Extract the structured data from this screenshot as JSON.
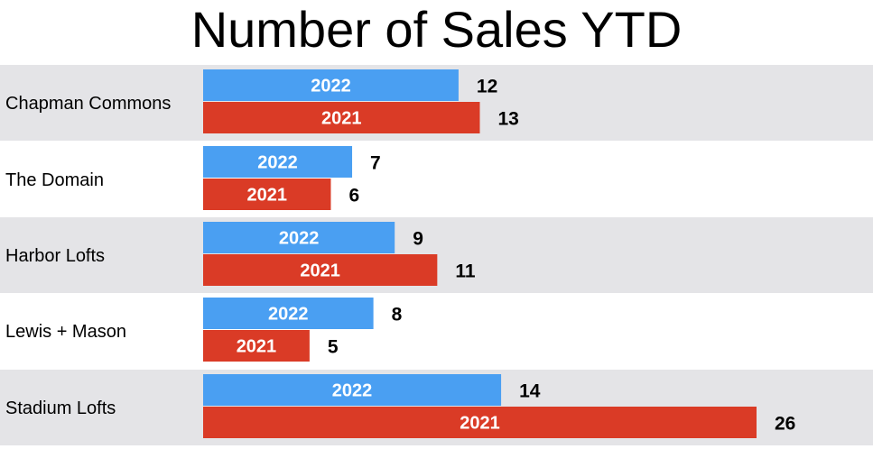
{
  "chart_data": {
    "type": "bar",
    "orientation": "horizontal",
    "title": "Number of Sales YTD",
    "categories": [
      "Chapman Commons",
      "The Domain",
      "Harbor Lofts",
      "Lewis + Mason",
      "Stadium Lofts"
    ],
    "series": [
      {
        "name": "2022",
        "values": [
          12,
          7,
          9,
          8,
          14
        ]
      },
      {
        "name": "2021",
        "values": [
          13,
          6,
          11,
          5,
          26
        ]
      }
    ],
    "grid": false,
    "colors": {
      "2022": "#4a9ff2",
      "2021": "#da3b26",
      "band": "#e4e4e7"
    }
  }
}
